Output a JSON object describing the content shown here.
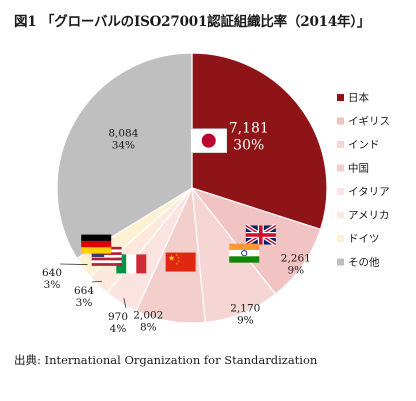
{
  "title": "図1 「グローバルのISO27001認証組織比率（2014年）」",
  "source": "出典: International Organization for Standardization",
  "chart_data": {
    "type": "pie",
    "title": "図1 「グローバルのISO27001認証組織比率（2014年）」",
    "legend_position": "right",
    "slices": [
      {
        "name": "日本",
        "value": 7181,
        "value_label": "7,181",
        "percent": "30%",
        "color": "#8e1418",
        "flag": "japan-flag-icon"
      },
      {
        "name": "イギリス",
        "value": 2261,
        "value_label": "2,261",
        "percent": "9%",
        "color": "#f1c3c2",
        "flag": "uk-flag-icon"
      },
      {
        "name": "インド",
        "value": 2170,
        "value_label": "2,170",
        "percent": "9%",
        "color": "#f6d6d4",
        "flag": "india-flag-icon"
      },
      {
        "name": "中国",
        "value": 2002,
        "value_label": "2,002",
        "percent": "8%",
        "color": "#f3cfcc",
        "flag": "china-flag-icon"
      },
      {
        "name": "イタリア",
        "value": 970,
        "value_label": "970",
        "percent": "4%",
        "color": "#fbe3e1",
        "flag": "italy-flag-icon"
      },
      {
        "name": "アメリカ",
        "value": 664,
        "value_label": "664",
        "percent": "3%",
        "color": "#fde9dc",
        "flag": "usa-flag-icon"
      },
      {
        "name": "ドイツ",
        "value": 640,
        "value_label": "640",
        "percent": "3%",
        "color": "#fdf1d3",
        "flag": "germany-flag-icon"
      },
      {
        "name": "その他",
        "value": 8084,
        "value_label": "8,084",
        "percent": "34%",
        "color": "#bfbfbf",
        "flag": ""
      }
    ]
  }
}
